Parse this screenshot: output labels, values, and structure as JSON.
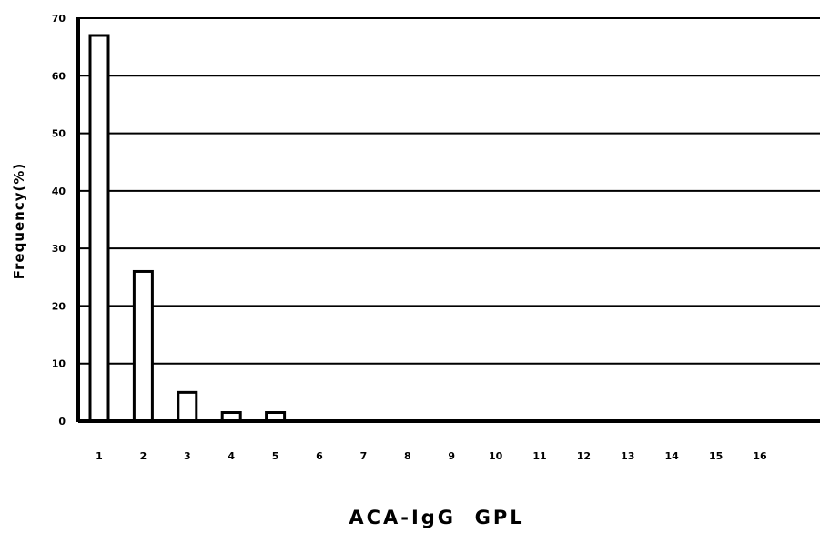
{
  "chart_data": {
    "type": "bar",
    "categories": [
      "1",
      "2",
      "3",
      "4",
      "5",
      "6",
      "7",
      "8",
      "9",
      "10",
      "11",
      "12",
      "13",
      "14",
      "15",
      "16"
    ],
    "values": [
      67,
      26,
      5,
      1.5,
      1.5,
      0,
      0,
      0,
      0,
      0,
      0,
      0,
      0,
      0,
      0,
      0
    ],
    "title": "",
    "xlabel": "ACA-IgG  GPL",
    "ylabel": "Frequency(%)",
    "ylim": [
      0,
      70
    ],
    "yticks": [
      0,
      10,
      20,
      30,
      40,
      50,
      60,
      70
    ],
    "grid": true,
    "bar_fill": "#ffffff",
    "bar_stroke": "#000000"
  }
}
